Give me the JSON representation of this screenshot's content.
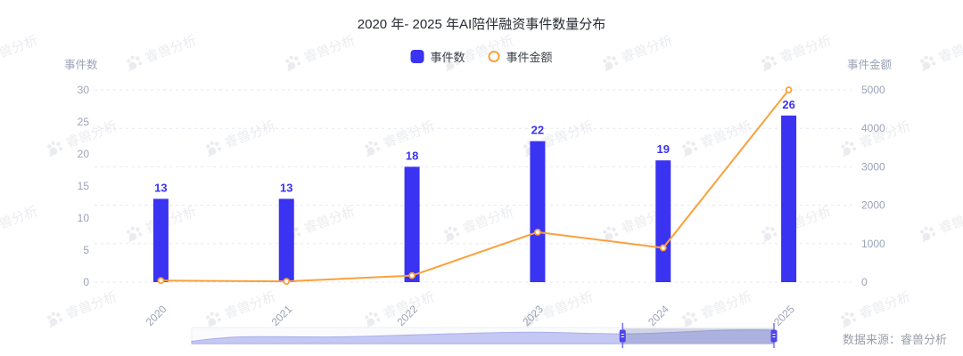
{
  "title": "2020 年- 2025 年AI陪伴融资事件数量分布",
  "legend": {
    "items": [
      {
        "label": "事件数",
        "marker": "square",
        "color": "#3a33f2"
      },
      {
        "label": "事件金额",
        "marker": "ring",
        "color": "#faa13c"
      }
    ]
  },
  "axes": {
    "left_name": "事件数",
    "right_name": "事件金额"
  },
  "watermark": {
    "text": "睿兽分析",
    "icon": "beast-logo"
  },
  "source": {
    "label": "数据来源：睿兽分析"
  },
  "colors": {
    "bar": "#3a33f2",
    "line": "#faa13c",
    "grid": "#e4e7ef",
    "tick_label": "#9aa3b7",
    "slider_area": "#b9bcf1",
    "slider_handle": "#4d46ef",
    "slider_overlay": "rgba(105,118,164,0.28)"
  },
  "slider": {
    "window_start_pct": 74,
    "window_end_pct": 100
  },
  "chart_data": {
    "type": "bar",
    "title": "2020 年- 2025 年AI陪伴融资事件数量分布",
    "categories": [
      "2020",
      "2021",
      "2022",
      "2023",
      "2024",
      "2025"
    ],
    "series": [
      {
        "name": "事件数",
        "type": "bar",
        "axis": "left",
        "color": "#3a33f2",
        "values": [
          13,
          13,
          18,
          22,
          19,
          26
        ]
      },
      {
        "name": "事件金额",
        "type": "line",
        "axis": "right",
        "color": "#faa13c",
        "values": [
          40,
          20,
          170,
          1300,
          890,
          5000
        ]
      }
    ],
    "y_left": {
      "name": "事件数",
      "min": 0,
      "max": 30,
      "ticks": [
        0,
        5,
        10,
        15,
        20,
        25,
        30
      ]
    },
    "y_right": {
      "name": "事件金额",
      "min": 0,
      "max": 5000,
      "ticks": [
        0,
        1000,
        2000,
        3000,
        4000,
        5000
      ]
    },
    "grid": "dashed-horizontal",
    "legend_position": "top-center",
    "bar_labels": [
      13,
      13,
      18,
      22,
      19,
      26
    ]
  }
}
